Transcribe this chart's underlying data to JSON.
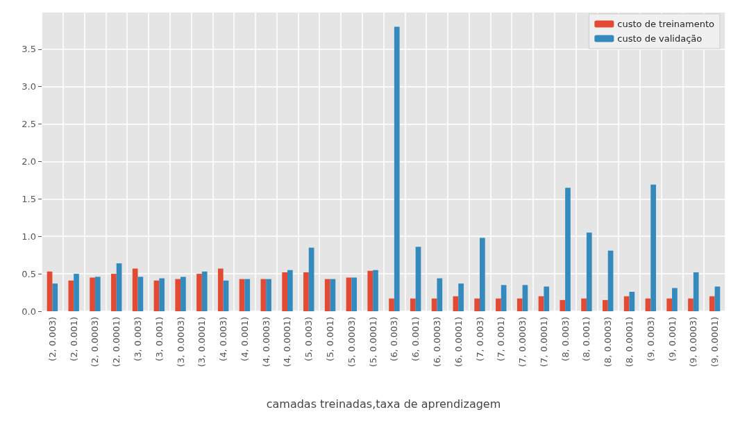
{
  "chart_data": {
    "type": "bar",
    "xlabel": "camadas treinadas,taxa de aprendizagem",
    "categories": [
      "(2, 0.003)",
      "(2, 0.001)",
      "(2, 0.0003)",
      "(2, 0.0001)",
      "(3, 0.003)",
      "(3, 0.001)",
      "(3, 0.0003)",
      "(3, 0.0001)",
      "(4, 0.003)",
      "(4, 0.001)",
      "(4, 0.0003)",
      "(4, 0.0001)",
      "(5, 0.003)",
      "(5, 0.001)",
      "(5, 0.0003)",
      "(5, 0.0001)",
      "(6, 0.003)",
      "(6, 0.001)",
      "(6, 0.0003)",
      "(6, 0.0001)",
      "(7, 0.003)",
      "(7, 0.001)",
      "(7, 0.0003)",
      "(7, 0.0001)",
      "(8, 0.003)",
      "(8, 0.001)",
      "(8, 0.0003)",
      "(8, 0.0001)",
      "(9, 0.003)",
      "(9, 0.001)",
      "(9, 0.0003)",
      "(9, 0.0001)"
    ],
    "series": [
      {
        "name": "custo de treinamento",
        "color": "#e24a33",
        "values": [
          0.53,
          0.41,
          0.45,
          0.5,
          0.57,
          0.41,
          0.43,
          0.5,
          0.57,
          0.43,
          0.43,
          0.52,
          0.52,
          0.43,
          0.45,
          0.54,
          0.17,
          0.17,
          0.17,
          0.2,
          0.17,
          0.17,
          0.17,
          0.2,
          0.15,
          0.17,
          0.15,
          0.2,
          0.17,
          0.17,
          0.17,
          0.2
        ]
      },
      {
        "name": "custo de validação",
        "color": "#348abd",
        "values": [
          0.37,
          0.5,
          0.46,
          0.64,
          0.46,
          0.44,
          0.46,
          0.53,
          0.41,
          0.43,
          0.43,
          0.55,
          0.85,
          0.43,
          0.45,
          0.55,
          3.8,
          0.86,
          0.44,
          0.37,
          0.98,
          0.35,
          0.35,
          0.33,
          1.65,
          1.05,
          0.81,
          0.26,
          1.69,
          0.31,
          0.52,
          0.33
        ]
      }
    ],
    "ylim": [
      0,
      3.99
    ],
    "yticks": [
      {
        "value": 0,
        "label": "0.0"
      },
      {
        "value": 0.5,
        "label": "0.5"
      },
      {
        "value": 1,
        "label": "1.0"
      },
      {
        "value": 1.5,
        "label": "1.5"
      },
      {
        "value": 2,
        "label": "2.0"
      },
      {
        "value": 2.5,
        "label": "2.5"
      },
      {
        "value": 3,
        "label": "3.0"
      },
      {
        "value": 3.5,
        "label": "3.5"
      }
    ],
    "grid": true,
    "legend": "top right"
  }
}
